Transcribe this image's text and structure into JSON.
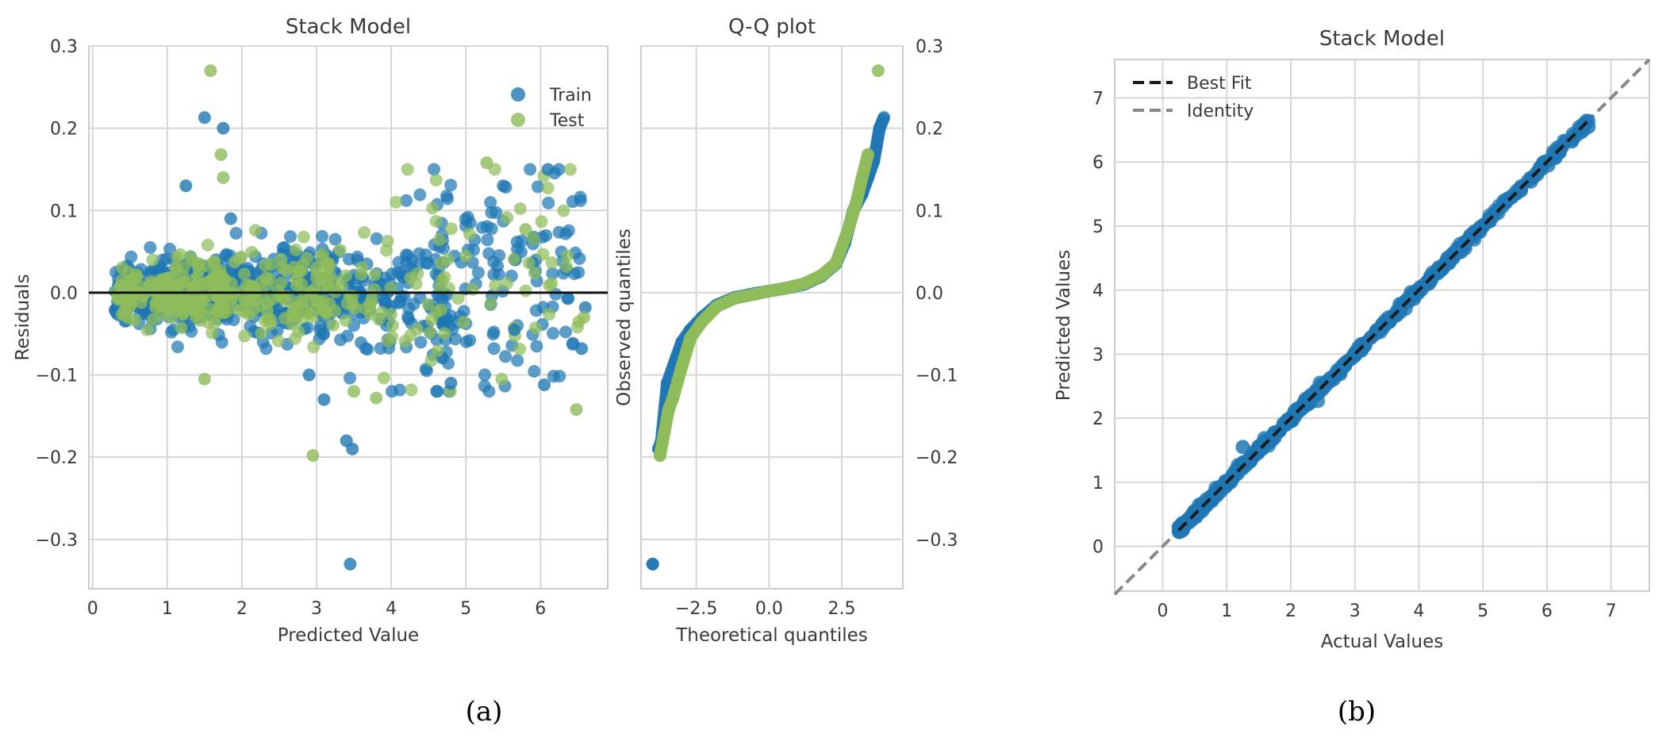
{
  "chart_data": [
    {
      "panel": "(a)",
      "type": "scatter",
      "title": "Stack Model",
      "xlabel": "Predicted Value",
      "ylabel": "Residuals",
      "xlim": [
        -0.05,
        6.9
      ],
      "ylim": [
        -0.36,
        0.3
      ],
      "xticks": [
        0,
        1,
        2,
        3,
        4,
        5,
        6
      ],
      "yticks": [
        -0.3,
        -0.2,
        -0.1,
        0.0,
        0.1,
        0.2,
        0.3
      ],
      "ytick_labels": [
        "−0.3",
        "−0.2",
        "−0.1",
        "0.0",
        "0.1",
        "0.2",
        "0.3"
      ],
      "hline_y": 0,
      "legend": {
        "position": "top-right",
        "entries": [
          "Train",
          "Test"
        ]
      },
      "series": [
        {
          "name": "Train",
          "color": "#1f77b4",
          "note": "dense cloud of ~1000 points; residual spread grows with predicted value",
          "x": [
            1.5,
            1.75,
            1.25,
            1.85,
            3.45,
            3.48,
            3.4,
            3.1,
            2.9,
            4.8,
            6.05,
            5.65,
            6.6,
            6.55,
            6.1,
            5.5
          ],
          "y": [
            0.213,
            0.2,
            0.13,
            0.09,
            -0.33,
            -0.19,
            -0.18,
            -0.13,
            -0.1,
            -0.11,
            -0.112,
            -0.045,
            -0.018,
            -0.068,
            0.15,
            0.13
          ]
        },
        {
          "name": "Test",
          "color": "#8fbc5a",
          "note": "dense cloud of ~400 points overlaying Train",
          "x": [
            1.58,
            1.72,
            1.75,
            2.95,
            6.48,
            5.28,
            3.8,
            3.5,
            1.5,
            6.58,
            5.8
          ],
          "y": [
            0.27,
            0.168,
            0.14,
            -0.198,
            -0.142,
            0.158,
            -0.128,
            -0.12,
            -0.105,
            -0.03,
            0.077
          ]
        }
      ]
    },
    {
      "panel": "(a)",
      "type": "scatter",
      "title": "Q-Q plot",
      "xlabel": "Theoretical quantiles",
      "ylabel": "Observed quantiles",
      "xlim": [
        -4.4,
        4.6
      ],
      "ylim": [
        -0.36,
        0.3
      ],
      "xticks": [
        -2.5,
        0.0,
        2.5
      ],
      "xtick_labels": [
        "−2.5",
        "0.0",
        "2.5"
      ],
      "yticks": [
        -0.3,
        -0.2,
        -0.1,
        0.0,
        0.1,
        0.2,
        0.3
      ],
      "ytick_labels": [
        "−0.3",
        "−0.2",
        "−0.1",
        "0.0",
        "0.1",
        "0.2",
        "0.3"
      ],
      "yaxis_side": "right",
      "series": [
        {
          "name": "Train",
          "color": "#1f77b4",
          "x": [
            -4.0,
            -3.8,
            -3.7,
            -3.5,
            -3.2,
            -3.0,
            -2.7,
            -2.3,
            -1.8,
            -1.2,
            -0.5,
            0.0,
            0.5,
            1.2,
            1.8,
            2.3,
            2.6,
            2.9,
            3.2,
            3.4,
            3.6,
            3.8,
            3.95
          ],
          "y": [
            -0.33,
            -0.19,
            -0.18,
            -0.11,
            -0.08,
            -0.06,
            -0.045,
            -0.03,
            -0.015,
            -0.006,
            -0.001,
            0.002,
            0.005,
            0.01,
            0.02,
            0.035,
            0.06,
            0.1,
            0.12,
            0.14,
            0.16,
            0.2,
            0.213
          ]
        },
        {
          "name": "Test",
          "color": "#8fbc5a",
          "x": [
            -3.75,
            -3.45,
            -3.3,
            -3.0,
            -2.7,
            -2.3,
            -1.8,
            -1.2,
            -0.5,
            0.0,
            0.5,
            1.2,
            1.8,
            2.3,
            2.7,
            3.0,
            3.2,
            3.4,
            3.75
          ],
          "y": [
            -0.198,
            -0.142,
            -0.128,
            -0.09,
            -0.055,
            -0.035,
            -0.017,
            -0.007,
            -0.002,
            0.002,
            0.005,
            0.011,
            0.021,
            0.036,
            0.075,
            0.11,
            0.14,
            0.168,
            0.27
          ]
        }
      ]
    },
    {
      "panel": "(b)",
      "type": "scatter",
      "title": "Stack Model",
      "xlabel": "Actual Values",
      "ylabel": "Predicted Values",
      "xlim": [
        -0.75,
        7.6
      ],
      "ylim": [
        -0.7,
        7.6
      ],
      "xticks": [
        0,
        1,
        2,
        3,
        4,
        5,
        6,
        7
      ],
      "yticks": [
        0,
        1,
        2,
        3,
        4,
        5,
        6,
        7
      ],
      "legend": {
        "position": "top-left",
        "entries": [
          "Best Fit",
          "Identity"
        ]
      },
      "lines": [
        {
          "name": "Best Fit",
          "color": "#1a1a1a",
          "style": "dashed",
          "slope": 1.0,
          "intercept": 0.0
        },
        {
          "name": "Identity",
          "color": "#888888",
          "style": "dashed",
          "slope": 1.0,
          "intercept": 0.0
        }
      ],
      "series": [
        {
          "name": "Points",
          "color": "#1f77b4",
          "note": "points lie tightly along the identity line from ~0.25 to ~6.6",
          "x": [
            0.25,
            0.5,
            0.8,
            1.0,
            1.25,
            1.5,
            1.75,
            2.0,
            2.5,
            3.0,
            3.5,
            4.0,
            4.5,
            5.0,
            5.3,
            5.7,
            6.2,
            6.5,
            6.65
          ],
          "y": [
            0.3,
            0.48,
            0.78,
            1.0,
            1.55,
            1.5,
            1.7,
            2.0,
            2.5,
            3.0,
            3.5,
            4.0,
            4.5,
            5.0,
            5.3,
            5.7,
            6.15,
            6.5,
            6.55
          ]
        }
      ]
    }
  ],
  "panel_labels": [
    "(a)",
    "(b)"
  ]
}
